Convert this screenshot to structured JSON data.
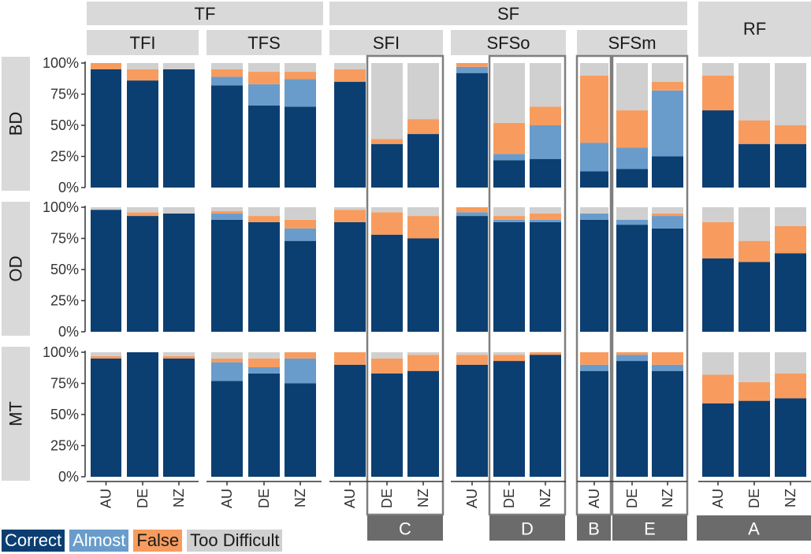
{
  "colors": {
    "correct": "#0b3f72",
    "almost": "#6a9ccb",
    "false": "#f79c5e",
    "too_difficult": "#d0d0d0",
    "strip": "#d9d9d9",
    "annotation": "#6b6b6b",
    "box": "#7f7f7f"
  },
  "legend": [
    {
      "key": "correct",
      "label": "Correct",
      "bg": "#0b3f72",
      "fg": "#ffffff"
    },
    {
      "key": "almost",
      "label": "Almost",
      "bg": "#6a9ccb",
      "fg": "#ffffff"
    },
    {
      "key": "false",
      "label": "False",
      "bg": "#f79c5e",
      "fg": "#1a1a1a"
    },
    {
      "key": "too_difficult",
      "label": "Too Difficult",
      "bg": "#d0d0d0",
      "fg": "#1a1a1a"
    }
  ],
  "chart_data": {
    "type": "bar",
    "stacked": true,
    "y_ticks": [
      "0%",
      "25%",
      "50%",
      "75%",
      "100%"
    ],
    "ylim": [
      0,
      100
    ],
    "categories": [
      "AU",
      "DE",
      "NZ"
    ],
    "groups": [
      {
        "label": "TF",
        "children": [
          "TFI",
          "TFS"
        ]
      },
      {
        "label": "SF",
        "children": [
          "SFI",
          "SFSo",
          "SFSm"
        ]
      },
      {
        "label": "RF",
        "children": [
          "RF"
        ]
      }
    ],
    "panels": [
      "TFI",
      "TFS",
      "SFI",
      "SFSo",
      "SFSm",
      "RF"
    ],
    "rows": [
      "BD",
      "OD",
      "MT"
    ],
    "series_order": [
      "correct",
      "almost",
      "false",
      "too_difficult"
    ],
    "series_labels": [
      "Correct",
      "Almost",
      "False",
      "Too Difficult"
    ],
    "values": {
      "BD": {
        "TFI": {
          "AU": [
            95,
            0,
            5,
            0
          ],
          "DE": [
            86,
            0,
            9,
            5
          ],
          "NZ": [
            95,
            0,
            0,
            5
          ]
        },
        "TFS": {
          "AU": [
            82,
            7,
            6,
            5
          ],
          "DE": [
            66,
            17,
            10,
            7
          ],
          "NZ": [
            65,
            22,
            6,
            7
          ]
        },
        "SFI": {
          "AU": [
            85,
            0,
            10,
            5
          ],
          "DE": [
            35,
            0,
            4,
            61
          ],
          "NZ": [
            43,
            0,
            12,
            45
          ]
        },
        "SFSo": {
          "AU": [
            92,
            5,
            3,
            0
          ],
          "DE": [
            22,
            5,
            25,
            48
          ],
          "NZ": [
            23,
            27,
            15,
            35
          ]
        },
        "SFSm": {
          "AU": [
            13,
            23,
            54,
            10
          ],
          "DE": [
            15,
            17,
            30,
            38
          ],
          "NZ": [
            25,
            53,
            7,
            15
          ]
        },
        "RF": {
          "AU": [
            62,
            0,
            28,
            10
          ],
          "DE": [
            35,
            0,
            19,
            46
          ],
          "NZ": [
            35,
            0,
            15,
            50
          ]
        }
      },
      "OD": {
        "TFI": {
          "AU": [
            98,
            0,
            0,
            2
          ],
          "DE": [
            93,
            0,
            3,
            4
          ],
          "NZ": [
            95,
            0,
            0,
            5
          ]
        },
        "TFS": {
          "AU": [
            90,
            5,
            2,
            3
          ],
          "DE": [
            88,
            0,
            5,
            7
          ],
          "NZ": [
            73,
            10,
            7,
            10
          ]
        },
        "SFI": {
          "AU": [
            88,
            0,
            10,
            2
          ],
          "DE": [
            78,
            0,
            18,
            4
          ],
          "NZ": [
            75,
            0,
            18,
            7
          ]
        },
        "SFSo": {
          "AU": [
            93,
            3,
            4,
            0
          ],
          "DE": [
            88,
            2,
            3,
            7
          ],
          "NZ": [
            88,
            2,
            5,
            5
          ]
        },
        "SFSm": {
          "AU": [
            90,
            5,
            0,
            5
          ],
          "DE": [
            86,
            4,
            0,
            10
          ],
          "NZ": [
            83,
            10,
            2,
            5
          ]
        },
        "RF": {
          "AU": [
            59,
            0,
            29,
            12
          ],
          "DE": [
            56,
            0,
            17,
            27
          ],
          "NZ": [
            63,
            0,
            22,
            15
          ]
        }
      },
      "MT": {
        "TFI": {
          "AU": [
            95,
            0,
            2,
            3
          ],
          "DE": [
            100,
            0,
            0,
            0
          ],
          "NZ": [
            95,
            0,
            2,
            3
          ]
        },
        "TFS": {
          "AU": [
            77,
            15,
            3,
            5
          ],
          "DE": [
            83,
            5,
            7,
            5
          ],
          "NZ": [
            75,
            20,
            5,
            0
          ]
        },
        "SFI": {
          "AU": [
            90,
            0,
            10,
            0
          ],
          "DE": [
            83,
            0,
            12,
            5
          ],
          "NZ": [
            85,
            0,
            13,
            2
          ]
        },
        "SFSo": {
          "AU": [
            90,
            0,
            8,
            2
          ],
          "DE": [
            93,
            0,
            5,
            2
          ],
          "NZ": [
            98,
            0,
            2,
            0
          ]
        },
        "SFSm": {
          "AU": [
            85,
            5,
            10,
            0
          ],
          "DE": [
            93,
            5,
            2,
            0
          ],
          "NZ": [
            85,
            5,
            10,
            0
          ]
        },
        "RF": {
          "AU": [
            59,
            0,
            23,
            18
          ],
          "DE": [
            61,
            0,
            15,
            24
          ],
          "NZ": [
            63,
            0,
            20,
            17
          ]
        }
      }
    },
    "annotations": [
      {
        "label": "C",
        "panel": "SFI",
        "categories": [
          "DE",
          "NZ"
        ]
      },
      {
        "label": "D",
        "panel": "SFSo",
        "categories": [
          "DE",
          "NZ"
        ]
      },
      {
        "label": "B",
        "panel": "SFSm",
        "categories": [
          "AU"
        ]
      },
      {
        "label": "E",
        "panel": "SFSm",
        "categories": [
          "DE",
          "NZ"
        ]
      },
      {
        "label": "A",
        "panel": "RF",
        "categories": [
          "AU",
          "DE",
          "NZ"
        ]
      }
    ]
  }
}
